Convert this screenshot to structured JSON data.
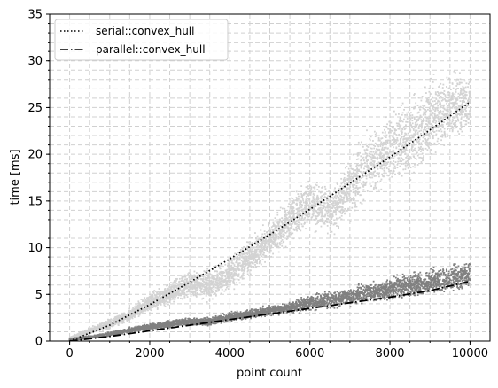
{
  "chart_data": {
    "type": "scatter",
    "title": "",
    "xlabel": "point count",
    "ylabel": "time [ms]",
    "xlim": [
      -500,
      10500
    ],
    "ylim": [
      0,
      35
    ],
    "xticks": [
      0,
      2000,
      4000,
      6000,
      8000,
      10000
    ],
    "yticks": [
      0,
      5,
      10,
      15,
      20,
      25,
      30,
      35
    ],
    "grid": true,
    "grid_style": "dashed, major and minor",
    "legend_position": "upper-left",
    "series": [
      {
        "name": "serial::convex_hull",
        "kind": "fit-line",
        "line_style": "dotted",
        "color": "#000000",
        "x": [
          0,
          1000,
          2000,
          3000,
          4000,
          5000,
          6000,
          7000,
          8000,
          9000,
          10000
        ],
        "y": [
          0,
          1.7,
          3.9,
          6.3,
          8.8,
          11.4,
          14.1,
          16.9,
          19.7,
          22.6,
          25.6
        ]
      },
      {
        "name": "parallel::convex_hull",
        "kind": "fit-line",
        "line_style": "dash-dot",
        "color": "#000000",
        "x": [
          0,
          1000,
          2000,
          3000,
          4000,
          5000,
          6000,
          7000,
          8000,
          9000,
          10000
        ],
        "y": [
          0,
          0.5,
          1.1,
          1.7,
          2.3,
          2.9,
          3.5,
          4.1,
          4.7,
          5.4,
          6.4
        ]
      },
      {
        "kind": "scatter-band",
        "color": "#d3d3d3",
        "x": [
          0,
          500,
          1000,
          1500,
          2000,
          2500,
          3000,
          3500,
          4000,
          4500,
          5000,
          5500,
          6000,
          6500,
          7000,
          7500,
          8000,
          8500,
          9000,
          9500,
          10000
        ],
        "y_low": [
          0,
          0.6,
          1.2,
          2.0,
          2.8,
          3.6,
          4.3,
          4.0,
          5.0,
          6.5,
          8.5,
          10.0,
          11.5,
          10.5,
          12.5,
          14.5,
          16.0,
          16.5,
          18.5,
          20.0,
          22.0
        ],
        "y_high": [
          0.5,
          1.5,
          2.5,
          3.5,
          5.5,
          6.5,
          8.0,
          8.0,
          9.5,
          11.5,
          13.0,
          16.0,
          18.0,
          17.0,
          20.5,
          23.5,
          25.5,
          27.0,
          29.0,
          30.0,
          29.0
        ]
      },
      {
        "kind": "scatter-band",
        "color": "#808080",
        "x": [
          0,
          500,
          1000,
          1500,
          2000,
          2500,
          3000,
          3500,
          4000,
          4500,
          5000,
          5500,
          6000,
          6500,
          7000,
          7500,
          8000,
          8500,
          9000,
          9500,
          10000
        ],
        "y_low": [
          0,
          0.2,
          0.5,
          0.8,
          1.1,
          1.3,
          1.6,
          1.5,
          2.0,
          2.3,
          2.6,
          2.8,
          3.1,
          3.3,
          3.6,
          3.8,
          4.1,
          4.3,
          4.6,
          4.9,
          5.2
        ],
        "y_high": [
          0.3,
          0.6,
          1.0,
          1.5,
          2.0,
          2.3,
          2.6,
          2.6,
          3.2,
          3.5,
          3.9,
          4.3,
          5.2,
          5.6,
          6.0,
          6.6,
          7.2,
          7.6,
          8.0,
          8.5,
          9.0
        ]
      }
    ]
  }
}
